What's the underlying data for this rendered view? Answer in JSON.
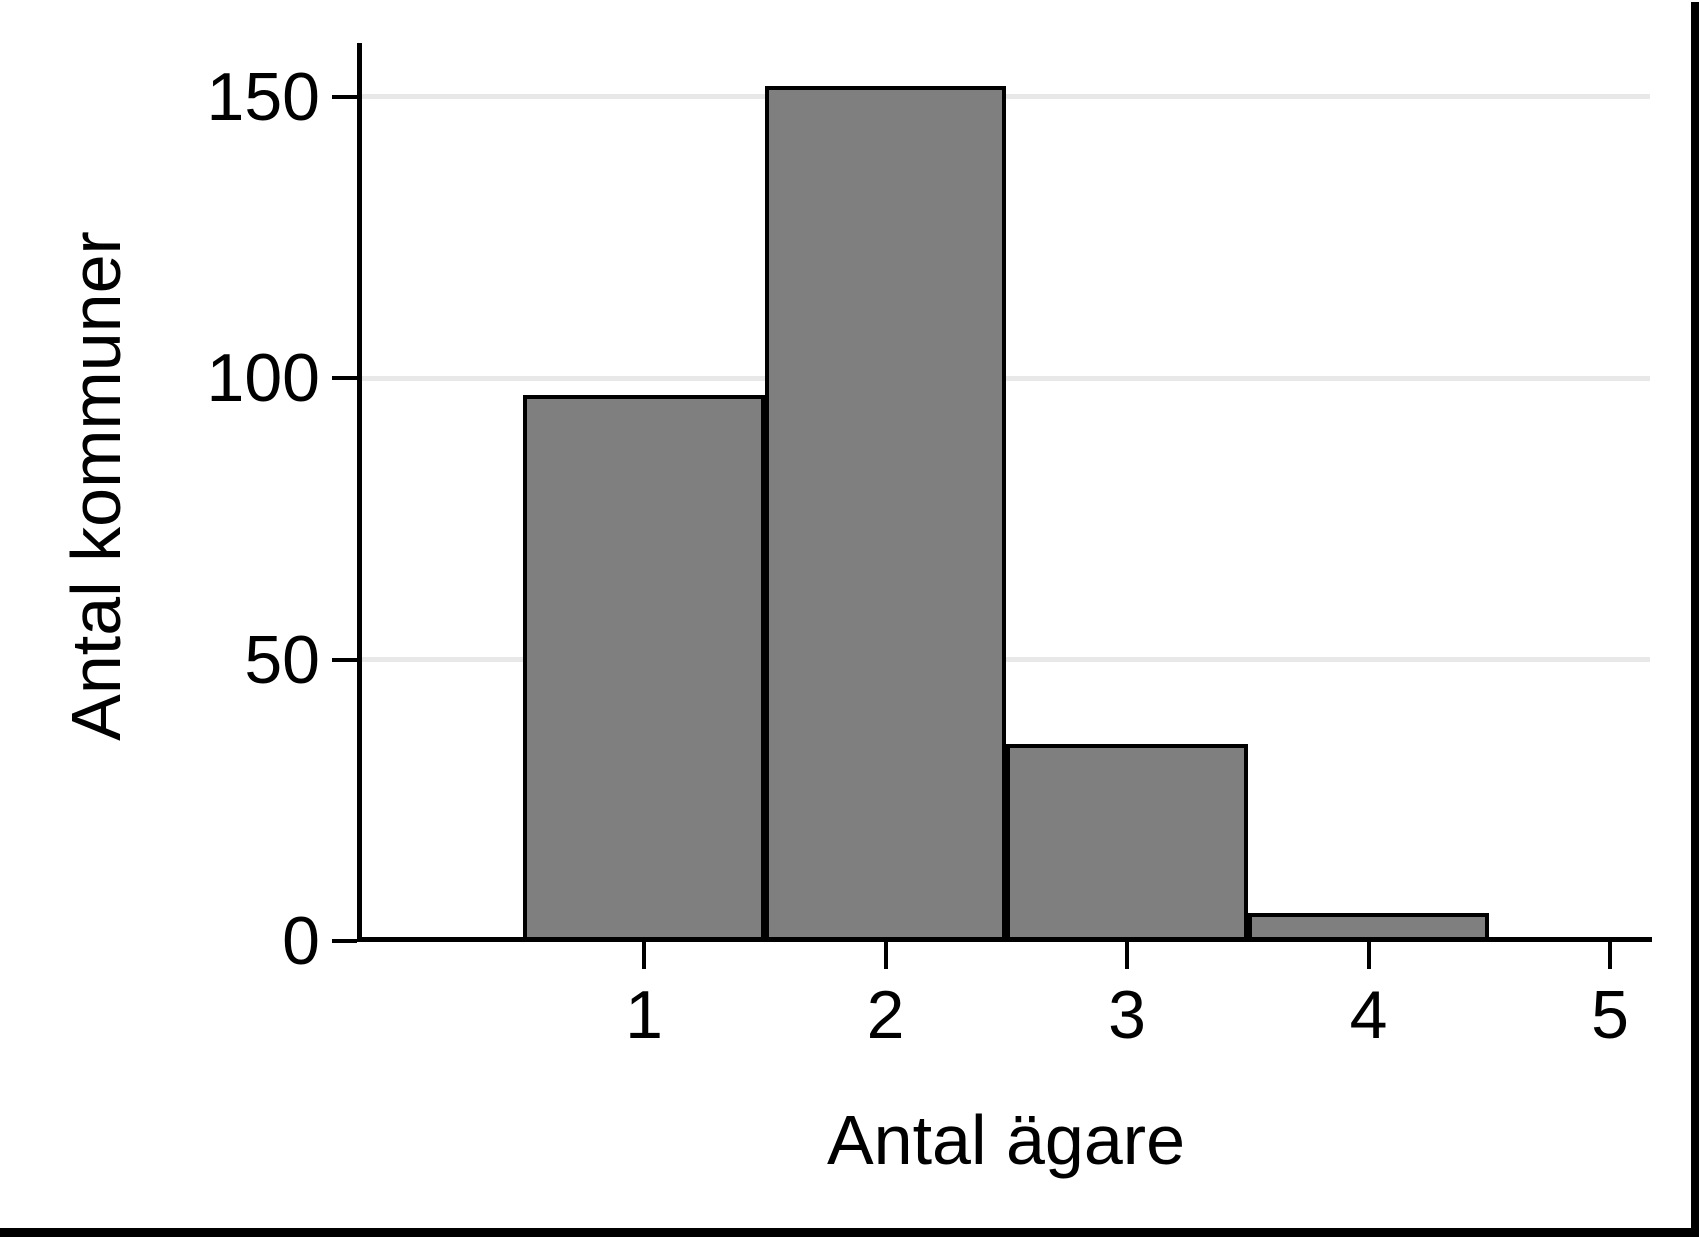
{
  "figure": {
    "background": "#ffffff",
    "edge_strip_color": "#000000"
  },
  "chart_data": {
    "type": "bar",
    "title": "",
    "categories": [
      1,
      2,
      3,
      4
    ],
    "values": [
      97,
      152,
      35,
      5
    ],
    "xlabel": "Antal ägare",
    "ylabel": "Antal kommuner",
    "x_ticks": [
      "1",
      "2",
      "3",
      "4",
      "5"
    ],
    "y_ticks": [
      "0",
      "50",
      "100",
      "150"
    ],
    "xlim": [
      0.5,
      5.5
    ],
    "ylim": [
      0,
      160
    ],
    "grid": true,
    "legend_position": "none",
    "bar_fill": "#7f7f7f",
    "bar_outline": "#000000",
    "gridline_color": "#e8e8e8",
    "axis_color": "#000000",
    "text_color": "#000000"
  }
}
